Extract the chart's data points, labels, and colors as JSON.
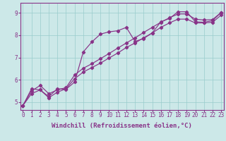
{
  "background_color": "#cce8e8",
  "line_color": "#883388",
  "xlim": [
    -0.3,
    23.3
  ],
  "ylim": [
    4.65,
    9.45
  ],
  "xticks": [
    0,
    1,
    2,
    3,
    4,
    5,
    6,
    7,
    8,
    9,
    10,
    11,
    12,
    13,
    14,
    15,
    16,
    17,
    18,
    19,
    20,
    21,
    22,
    23
  ],
  "yticks": [
    5,
    6,
    7,
    8,
    9
  ],
  "line1_x": [
    0,
    1,
    2,
    3,
    4,
    5,
    6,
    7,
    8,
    9,
    10,
    11,
    12,
    13,
    14,
    15,
    16,
    17,
    18,
    19,
    20,
    21,
    22,
    23
  ],
  "line1_y": [
    4.85,
    5.6,
    5.55,
    5.25,
    5.6,
    5.58,
    5.9,
    7.25,
    7.7,
    8.05,
    8.15,
    8.2,
    8.35,
    7.72,
    7.85,
    8.1,
    8.6,
    8.75,
    9.05,
    9.05,
    8.6,
    8.58,
    8.65,
    9.02
  ],
  "line2_x": [
    0,
    1,
    2,
    3,
    4,
    5,
    6,
    7,
    8,
    9,
    10,
    11,
    12,
    13,
    14,
    15,
    16,
    17,
    18,
    19,
    20,
    21,
    22,
    23
  ],
  "line2_y": [
    4.85,
    5.38,
    5.55,
    5.2,
    5.45,
    5.6,
    6.05,
    6.35,
    6.55,
    6.75,
    6.98,
    7.2,
    7.45,
    7.65,
    7.88,
    8.1,
    8.35,
    8.55,
    8.72,
    8.72,
    8.55,
    8.55,
    8.58,
    8.9
  ],
  "line3_x": [
    0,
    1,
    2,
    3,
    4,
    5,
    6,
    7,
    8,
    9,
    10,
    11,
    12,
    13,
    14,
    15,
    16,
    17,
    18,
    19,
    20,
    21,
    22,
    23
  ],
  "line3_y": [
    4.85,
    5.5,
    5.75,
    5.38,
    5.55,
    5.65,
    6.22,
    6.52,
    6.72,
    6.95,
    7.18,
    7.42,
    7.65,
    7.88,
    8.12,
    8.35,
    8.58,
    8.78,
    8.95,
    8.95,
    8.72,
    8.68,
    8.7,
    9.02
  ],
  "xlabel": "Windchill (Refroidissement éolien,°C)",
  "xlabel_fontsize": 6.5,
  "tick_fontsize": 5.5,
  "xlabel_color": "#883388",
  "tick_color": "#883388",
  "border_color": "#883388",
  "grid_color": "#99cccc",
  "marker": "D",
  "markersize": 2.2,
  "linewidth": 0.85
}
